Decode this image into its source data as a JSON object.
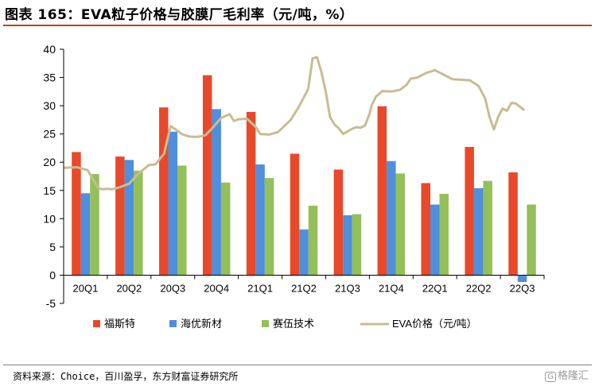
{
  "header": {
    "title": "图表 165：EVA粒子价格与胶膜厂毛利率（元/吨，%）"
  },
  "footer": {
    "source": "资料来源：Choice，百川盈孚，东方财富证券研究所",
    "watermark": "格隆汇",
    "watermark_mark": "G"
  },
  "colors": {
    "fusi": "#e8492a",
    "haiyou": "#4f8fdc",
    "saiwu": "#93c05a",
    "eva": "#c9bc93",
    "axis": "#000000",
    "title_rule": "#b8442b"
  },
  "chart_data": {
    "type": "bar",
    "categories": [
      "20Q1",
      "20Q2",
      "20Q3",
      "20Q4",
      "21Q1",
      "21Q2",
      "21Q3",
      "21Q4",
      "22Q1",
      "22Q2",
      "22Q3"
    ],
    "y_ticks": [
      "40",
      "35",
      "30",
      "25",
      "20",
      "15",
      "10",
      "5",
      "0",
      "-5"
    ],
    "ylim": [
      -5,
      40
    ],
    "legend_position": "bottom",
    "series": [
      {
        "name": "福斯特",
        "type": "bar",
        "values": [
          21.8,
          21.0,
          29.7,
          35.4,
          28.9,
          21.5,
          18.7,
          29.9,
          16.3,
          22.7,
          18.2
        ]
      },
      {
        "name": "海优新材",
        "type": "bar",
        "values": [
          14.5,
          20.4,
          25.4,
          29.4,
          19.6,
          8.1,
          10.6,
          20.2,
          12.5,
          15.4,
          -1.2
        ]
      },
      {
        "name": "赛伍技术",
        "type": "bar",
        "values": [
          17.9,
          18.5,
          19.4,
          16.4,
          17.2,
          12.3,
          10.8,
          18.0,
          14.4,
          16.7,
          12.5
        ]
      },
      {
        "name": "EVA价格（元/吨）",
        "type": "line",
        "x": [
          0.0,
          0.3,
          0.55,
          0.65,
          0.8,
          0.9,
          1.0,
          1.1,
          1.3,
          1.5,
          1.7,
          1.95,
          2.1,
          2.3,
          2.45,
          2.6,
          2.7,
          2.85,
          2.95,
          3.0,
          3.05,
          3.15,
          3.25,
          3.4,
          3.6,
          3.8,
          3.9,
          4.0,
          4.2,
          4.4,
          4.5,
          4.7,
          4.9,
          5.0,
          5.2,
          5.4,
          5.6,
          5.7,
          5.8,
          5.9,
          6.0,
          6.1,
          6.2,
          6.3,
          6.4,
          6.6,
          6.7,
          6.8,
          6.9,
          7.0,
          7.05,
          7.15,
          7.3,
          7.5,
          7.7,
          7.85,
          7.95,
          8.1,
          8.3,
          8.5,
          8.7,
          8.9,
          9.1,
          9.3,
          9.5,
          9.65,
          9.75,
          9.85,
          9.95,
          10.05,
          10.15,
          10.25,
          10.35,
          10.45,
          10.55
        ],
        "values": [
          19.0,
          19.1,
          18.6,
          17.2,
          15.4,
          15.2,
          15.3,
          15.2,
          15.6,
          16.2,
          17.9,
          19.5,
          19.6,
          21.5,
          26.4,
          25.6,
          25.0,
          24.6,
          24.5,
          24.5,
          24.5,
          24.6,
          24.8,
          26.0,
          27.8,
          28.5,
          27.3,
          27.6,
          27.7,
          26.2,
          25.0,
          24.9,
          25.3,
          26.0,
          27.5,
          30.0,
          33.0,
          38.4,
          38.6,
          36.0,
          32.5,
          28.0,
          26.7,
          26.0,
          25.0,
          25.9,
          26.2,
          26.1,
          26.5,
          28.5,
          30.0,
          31.6,
          32.6,
          32.5,
          32.8,
          33.7,
          34.8,
          35.0,
          35.8,
          36.3,
          35.5,
          34.7,
          34.6,
          34.5,
          33.5,
          31.3,
          28.0,
          25.8,
          28.0,
          29.5,
          29.1,
          30.5,
          30.4,
          29.8,
          29.2
        ]
      }
    ]
  }
}
